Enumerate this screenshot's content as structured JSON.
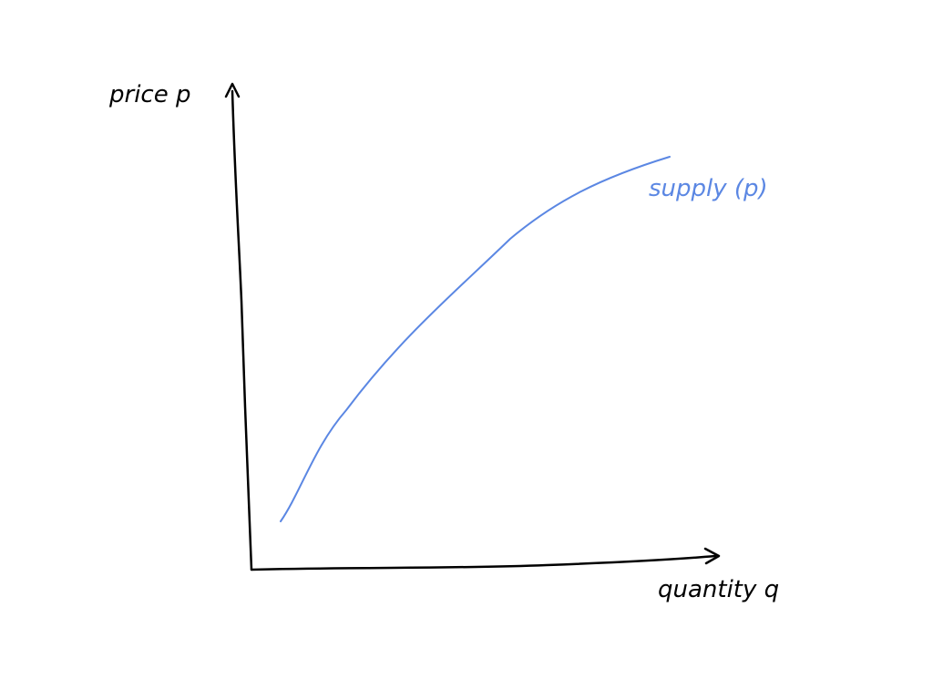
{
  "diagram": {
    "y_axis_label": "price p",
    "x_axis_label": "quantity q",
    "curve_label": "supply (p)",
    "colors": {
      "ink": "#000000",
      "curve": "#5b87e3",
      "background": "#ffffff"
    }
  }
}
